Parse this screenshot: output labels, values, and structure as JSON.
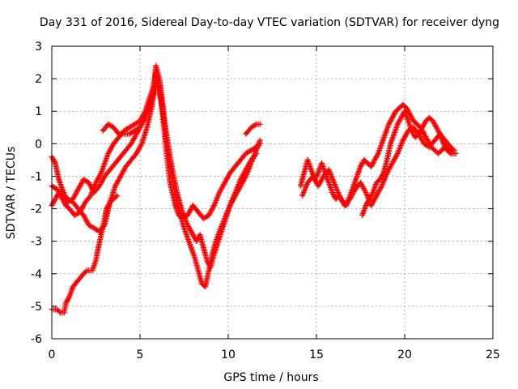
{
  "chart_data": {
    "type": "scatter",
    "title": "Day 331 of 2016, Sidereal Day-to-day VTEC variation (SDTVAR) for receiver dyng",
    "xlabel": "GPS time / hours",
    "ylabel": "SDTVAR / TECUs",
    "xlim": [
      0,
      25
    ],
    "ylim": [
      -6,
      3
    ],
    "x_ticks": [
      "0",
      "5",
      "10",
      "15",
      "20",
      "25"
    ],
    "y_ticks": [
      "-6",
      "-5",
      "-4",
      "-3",
      "-2",
      "-1",
      "0",
      "1",
      "2",
      "3"
    ],
    "grid": true,
    "marker": "+",
    "colors": {
      "series": "#ff0000"
    },
    "series": [
      {
        "x": [
          0.0,
          0.3,
          0.5,
          0.7,
          0.8,
          1.0,
          1.2,
          1.5,
          1.8,
          2.0,
          2.3,
          2.5,
          2.6,
          2.8,
          3.0,
          3.1,
          3.3,
          3.5,
          3.7
        ],
        "y": [
          -5.1,
          -5.1,
          -5.2,
          -5.2,
          -4.9,
          -4.7,
          -4.4,
          -4.2,
          -4.0,
          -3.9,
          -3.9,
          -3.6,
          -3.3,
          -2.8,
          -2.3,
          -2.0,
          -1.8,
          -1.7,
          -1.6
        ]
      },
      {
        "x": [
          0.0,
          0.2,
          0.4,
          0.6,
          0.9,
          1.2,
          1.5,
          1.8,
          2.1,
          2.4,
          2.7,
          3.0,
          3.3,
          3.6,
          3.9,
          4.2,
          4.5,
          4.8,
          5.0,
          5.2,
          5.5,
          5.7,
          5.9,
          6.1,
          6.3,
          6.5,
          6.7,
          7.0,
          7.2,
          7.4,
          7.7,
          8.0,
          8.3,
          8.6,
          8.9,
          9.2,
          9.5,
          9.8,
          10.1,
          10.4,
          10.7,
          11.0,
          11.3,
          11.6,
          11.8
        ],
        "y": [
          -0.4,
          -0.6,
          -1.1,
          -1.4,
          -1.8,
          -1.7,
          -1.4,
          -1.1,
          -1.2,
          -1.5,
          -1.3,
          -1.0,
          -0.8,
          -0.6,
          -0.4,
          -0.2,
          0.0,
          0.3,
          0.5,
          0.8,
          1.1,
          1.6,
          2.2,
          1.9,
          0.8,
          -0.3,
          -1.2,
          -1.9,
          -2.2,
          -2.3,
          -2.2,
          -1.9,
          -2.1,
          -2.3,
          -2.2,
          -1.9,
          -1.5,
          -1.2,
          -0.9,
          -0.7,
          -0.5,
          -0.3,
          -0.2,
          -0.1,
          0.0
        ]
      },
      {
        "x": [
          0.0,
          0.3,
          0.6,
          0.9,
          1.2,
          1.5,
          1.8,
          2.1,
          2.4,
          2.7,
          3.0,
          3.3,
          3.6,
          3.9,
          4.2,
          4.5,
          4.8,
          5.1,
          5.4,
          5.7,
          5.9,
          6.1,
          6.3,
          6.5,
          6.7,
          6.9,
          7.1,
          7.3,
          7.5,
          7.7,
          7.9,
          8.1,
          8.3,
          8.5,
          8.7,
          8.9,
          9.1,
          9.3,
          9.5,
          9.8,
          10.1,
          10.4,
          10.7,
          11.0,
          11.3,
          11.6,
          11.8
        ],
        "y": [
          -1.3,
          -1.4,
          -1.6,
          -1.7,
          -1.8,
          -2.0,
          -2.2,
          -2.5,
          -2.6,
          -2.7,
          -2.5,
          -1.8,
          -1.3,
          -1.0,
          -0.7,
          -0.5,
          -0.3,
          0.0,
          0.5,
          1.2,
          2.4,
          2.0,
          1.2,
          0.2,
          -0.6,
          -1.3,
          -1.8,
          -2.2,
          -2.6,
          -2.9,
          -3.2,
          -3.5,
          -3.9,
          -4.3,
          -4.4,
          -3.9,
          -3.4,
          -3.0,
          -2.7,
          -2.3,
          -1.9,
          -1.6,
          -1.3,
          -1.0,
          -0.6,
          -0.2,
          0.1
        ]
      },
      {
        "x": [
          0.0,
          0.2,
          0.4,
          0.6,
          0.8,
          1.0,
          1.3,
          1.6,
          1.9,
          2.2,
          2.5,
          2.8,
          3.0,
          3.2,
          3.5,
          3.8,
          4.1,
          4.4,
          4.7,
          5.0,
          5.3,
          5.6,
          5.9,
          6.2,
          6.5,
          6.8,
          7.1,
          7.4,
          7.7,
          8.0,
          8.2,
          8.4,
          8.6,
          8.8,
          9.0,
          9.2,
          9.5,
          9.8,
          10.1,
          10.4,
          10.7,
          11.0,
          11.3,
          11.6
        ],
        "y": [
          -1.9,
          -1.7,
          -1.5,
          -1.7,
          -1.9,
          -2.0,
          -2.2,
          -2.1,
          -1.8,
          -1.6,
          -1.2,
          -0.9,
          -0.6,
          -0.3,
          0.0,
          0.2,
          0.4,
          0.5,
          0.6,
          0.7,
          1.0,
          1.5,
          2.0,
          1.3,
          0.3,
          -0.7,
          -1.5,
          -2.1,
          -2.5,
          -2.8,
          -3.0,
          -2.8,
          -3.2,
          -3.6,
          -3.8,
          -3.4,
          -2.9,
          -2.4,
          -1.9,
          -1.5,
          -1.1,
          -0.8,
          -0.5,
          -0.3
        ]
      },
      {
        "x": [
          2.9,
          3.2,
          3.5,
          3.8,
          4.1,
          4.4,
          4.7,
          5.0,
          5.3,
          5.6,
          5.9
        ],
        "y": [
          0.4,
          0.6,
          0.5,
          0.3,
          0.3,
          0.3,
          0.4,
          0.5,
          0.8,
          1.2,
          1.8
        ]
      },
      {
        "x": [
          11.0,
          11.3,
          11.6,
          11.8
        ],
        "y": [
          0.3,
          0.5,
          0.6,
          0.6
        ]
      },
      {
        "x": [
          14.1,
          14.3,
          14.5,
          14.7,
          14.9,
          15.1,
          15.3,
          15.5,
          15.7,
          15.9,
          16.1,
          16.3,
          16.5,
          16.7,
          16.9,
          17.1,
          17.3,
          17.5,
          17.7,
          17.9,
          18.1,
          18.3,
          18.5,
          18.7,
          18.9,
          19.1,
          19.3,
          19.5,
          19.7,
          19.9,
          20.1,
          20.3,
          20.5,
          20.7,
          20.9,
          21.1,
          21.3,
          21.5,
          21.7,
          21.9,
          22.1,
          22.3,
          22.5,
          22.7,
          22.9
        ],
        "y": [
          -1.3,
          -0.9,
          -0.5,
          -0.8,
          -1.1,
          -0.9,
          -0.6,
          -0.9,
          -1.2,
          -1.5,
          -1.7,
          -1.6,
          -1.8,
          -1.9,
          -1.6,
          -1.3,
          -1.0,
          -0.7,
          -0.5,
          -0.6,
          -0.7,
          -0.5,
          -0.3,
          0.0,
          0.3,
          0.6,
          0.8,
          1.0,
          1.1,
          1.2,
          1.1,
          0.9,
          0.7,
          0.6,
          0.5,
          0.3,
          0.1,
          -0.1,
          -0.2,
          -0.3,
          -0.2,
          -0.1,
          -0.2,
          -0.3,
          -0.3
        ]
      },
      {
        "x": [
          14.2,
          14.5,
          14.8,
          15.1,
          15.4,
          15.7,
          16.0,
          16.3,
          16.6,
          16.9,
          17.2,
          17.5,
          17.8,
          18.1,
          18.4,
          18.7,
          19.0,
          19.3,
          19.6,
          19.9,
          20.2,
          20.5,
          20.8,
          21.1,
          21.4,
          21.7,
          22.0,
          22.3,
          22.6,
          22.8
        ],
        "y": [
          -1.6,
          -1.2,
          -1.0,
          -1.3,
          -1.0,
          -0.8,
          -1.2,
          -1.6,
          -1.9,
          -1.7,
          -1.4,
          -1.2,
          -1.5,
          -1.9,
          -1.6,
          -1.3,
          -0.9,
          -0.6,
          -0.3,
          0.1,
          0.4,
          0.5,
          0.3,
          0.0,
          -0.1,
          0.1,
          0.3,
          0.1,
          -0.1,
          -0.2
        ]
      },
      {
        "x": [
          17.6,
          17.8,
          18.0,
          18.2,
          18.4,
          18.6,
          18.8,
          19.0,
          19.2,
          19.4,
          19.6,
          19.8,
          20.0,
          20.2,
          20.4,
          20.6,
          20.8,
          21.0,
          21.2,
          21.4,
          21.6,
          21.8,
          22.0,
          22.2,
          22.4,
          22.6,
          22.8
        ],
        "y": [
          -2.2,
          -1.9,
          -1.7,
          -1.5,
          -1.2,
          -1.1,
          -0.9,
          -0.5,
          0.0,
          0.3,
          0.6,
          0.8,
          1.0,
          0.7,
          0.4,
          0.2,
          0.3,
          0.5,
          0.7,
          0.8,
          0.7,
          0.5,
          0.3,
          0.0,
          -0.2,
          -0.3,
          -0.3
        ]
      }
    ]
  }
}
